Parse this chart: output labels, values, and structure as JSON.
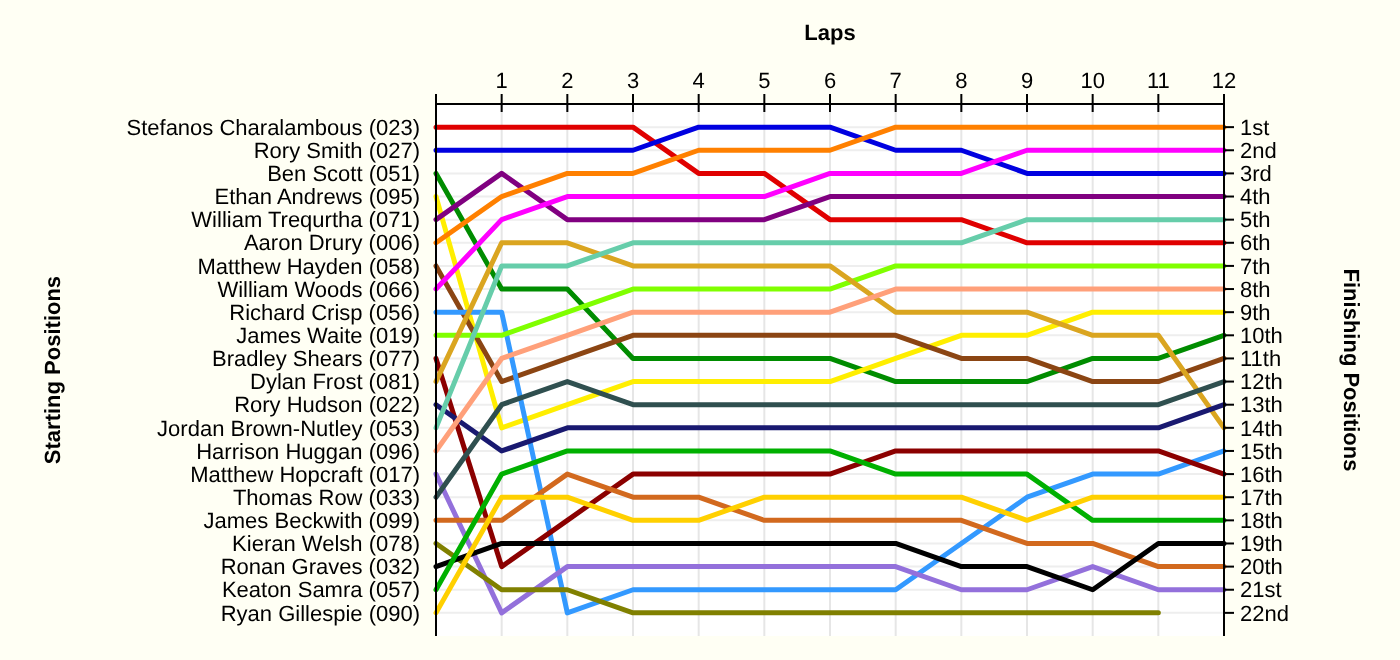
{
  "chart_data": {
    "type": "line",
    "xlabel": "Laps",
    "annotations": [
      "Starting Positions"
    ],
    "y2label": "Finishing Positions",
    "x": [
      0,
      1,
      2,
      3,
      4,
      5,
      6,
      7,
      8,
      9,
      10,
      11,
      12
    ],
    "xlim": [
      0,
      12
    ],
    "xticks": [
      {
        "value": 0,
        "label": null
      },
      1,
      2,
      3,
      4,
      5,
      6,
      7,
      8,
      9,
      10,
      11,
      12
    ],
    "y2lim": [
      23,
      0
    ],
    "y2ticks": [
      {
        "value": 1,
        "label": "1st"
      },
      {
        "value": 2,
        "label": "2nd"
      },
      {
        "value": 3,
        "label": "3rd"
      },
      {
        "value": 4,
        "label": "4th"
      },
      {
        "value": 5,
        "label": "5th"
      },
      {
        "value": 6,
        "label": "6th"
      },
      {
        "value": 7,
        "label": "7th"
      },
      {
        "value": 8,
        "label": "8th"
      },
      {
        "value": 9,
        "label": "9th"
      },
      {
        "value": 10,
        "label": "10th"
      },
      {
        "value": 11,
        "label": "11th"
      },
      {
        "value": 12,
        "label": "12th"
      },
      {
        "value": 13,
        "label": "13th"
      },
      {
        "value": 14,
        "label": "14th"
      },
      {
        "value": 15,
        "label": "15th"
      },
      {
        "value": 16,
        "label": "16th"
      },
      {
        "value": 17,
        "label": "17th"
      },
      {
        "value": 18,
        "label": "18th"
      },
      {
        "value": 19,
        "label": "19th"
      },
      {
        "value": 20,
        "label": "20th"
      },
      {
        "value": 21,
        "label": "21st"
      },
      {
        "value": 22,
        "label": "22nd"
      }
    ],
    "grid": true,
    "marker": "none",
    "line_style": "solid",
    "legend": false,
    "series": [
      {
        "name": "Stefanos Charalambous (023)",
        "axis": "y2",
        "color": "#e00000",
        "values": [
          1,
          1,
          1,
          1,
          3,
          3,
          5,
          5,
          5,
          6,
          6,
          6,
          6
        ]
      },
      {
        "name": "Rory Smith (027)",
        "axis": "y2",
        "color": "#0000e0",
        "values": [
          2,
          2,
          2,
          2,
          1,
          1,
          1,
          2,
          2,
          3,
          3,
          3,
          3
        ]
      },
      {
        "name": "Ben Scott (051)",
        "axis": "y2",
        "color": "#008c00",
        "values": [
          3,
          8,
          8,
          11,
          11,
          11,
          11,
          12,
          12,
          12,
          11,
          11,
          10
        ]
      },
      {
        "name": "Ethan Andrews (095)",
        "axis": "y2",
        "color": "#ffee00",
        "values": [
          4,
          14,
          13,
          12,
          12,
          12,
          12,
          11,
          10,
          10,
          9,
          9,
          9
        ]
      },
      {
        "name": "William Trequrtha (071)",
        "axis": "y2",
        "color": "#800080",
        "values": [
          5,
          3,
          5,
          5,
          5,
          5,
          4,
          4,
          4,
          4,
          4,
          4,
          4
        ]
      },
      {
        "name": "Aaron Drury (006)",
        "axis": "y2",
        "color": "#ff8000",
        "values": [
          6,
          4,
          3,
          3,
          2,
          2,
          2,
          1,
          1,
          1,
          1,
          1,
          1
        ]
      },
      {
        "name": "Matthew Hayden (058)",
        "axis": "y2",
        "color": "#8b4513",
        "values": [
          7,
          12,
          11,
          10,
          10,
          10,
          10,
          10,
          11,
          11,
          12,
          12,
          11
        ]
      },
      {
        "name": "William Woods (066)",
        "axis": "y2",
        "color": "#ff00ff",
        "values": [
          8,
          5,
          4,
          4,
          4,
          4,
          3,
          3,
          3,
          2,
          2,
          2,
          2
        ]
      },
      {
        "name": "Richard Crisp (056)",
        "axis": "y2",
        "color": "#3399ff",
        "values": [
          9,
          9,
          22,
          21,
          21,
          21,
          21,
          21,
          19,
          17,
          16,
          16,
          15
        ]
      },
      {
        "name": "James Waite (019)",
        "axis": "y2",
        "color": "#80ff00",
        "values": [
          10,
          10,
          9,
          8,
          8,
          8,
          8,
          7,
          7,
          7,
          7,
          7,
          7
        ]
      },
      {
        "name": "Bradley Shears (077)",
        "axis": "y2",
        "color": "#8b0000",
        "values": [
          11,
          20,
          18,
          16,
          16,
          16,
          16,
          15,
          15,
          15,
          15,
          15,
          16
        ]
      },
      {
        "name": "Dylan Frost (081)",
        "axis": "y2",
        "color": "#daa520",
        "values": [
          12,
          6,
          6,
          7,
          7,
          7,
          7,
          9,
          9,
          9,
          10,
          10,
          14
        ]
      },
      {
        "name": "Rory Hudson (022)",
        "axis": "y2",
        "color": "#191970",
        "values": [
          13,
          15,
          14,
          14,
          14,
          14,
          14,
          14,
          14,
          14,
          14,
          14,
          13
        ]
      },
      {
        "name": "Jordan Brown-Nutley (053)",
        "axis": "y2",
        "color": "#66cdaa",
        "values": [
          14,
          7,
          7,
          6,
          6,
          6,
          6,
          6,
          6,
          5,
          5,
          5,
          5
        ]
      },
      {
        "name": "Harrison Huggan (096)",
        "axis": "y2",
        "color": "#ffa07a",
        "values": [
          15,
          11,
          10,
          9,
          9,
          9,
          9,
          8,
          8,
          8,
          8,
          8,
          8
        ]
      },
      {
        "name": "Matthew Hopcraft (017)",
        "axis": "y2",
        "color": "#9370db",
        "values": [
          16,
          22,
          20,
          20,
          20,
          20,
          20,
          20,
          21,
          21,
          20,
          21,
          21
        ]
      },
      {
        "name": "Thomas Row (033)",
        "axis": "y2",
        "color": "#2f4f4f",
        "values": [
          17,
          13,
          12,
          13,
          13,
          13,
          13,
          13,
          13,
          13,
          13,
          13,
          12
        ]
      },
      {
        "name": "James Beckwith (099)",
        "axis": "y2",
        "color": "#d2691e",
        "values": [
          18,
          18,
          16,
          17,
          17,
          18,
          18,
          18,
          18,
          19,
          19,
          20,
          20
        ]
      },
      {
        "name": "Kieran Welsh (078)",
        "axis": "y2",
        "color": "#808000",
        "values": [
          19,
          21,
          21,
          22,
          22,
          22,
          22,
          22,
          22,
          22,
          22,
          22,
          null
        ]
      },
      {
        "name": "Ronan Graves (032)",
        "axis": "y2",
        "color": "#000000",
        "values": [
          20,
          19,
          19,
          19,
          19,
          19,
          19,
          19,
          20,
          20,
          21,
          19,
          19
        ]
      },
      {
        "name": "Keaton Samra (057)",
        "axis": "y2",
        "color": "#00b000",
        "values": [
          21,
          16,
          15,
          15,
          15,
          15,
          15,
          16,
          16,
          16,
          18,
          18,
          18
        ]
      },
      {
        "name": "Ryan Gillespie (090)",
        "axis": "y2",
        "color": "#ffd000",
        "values": [
          22,
          17,
          17,
          18,
          18,
          17,
          17,
          17,
          17,
          18,
          17,
          17,
          17
        ]
      }
    ]
  }
}
